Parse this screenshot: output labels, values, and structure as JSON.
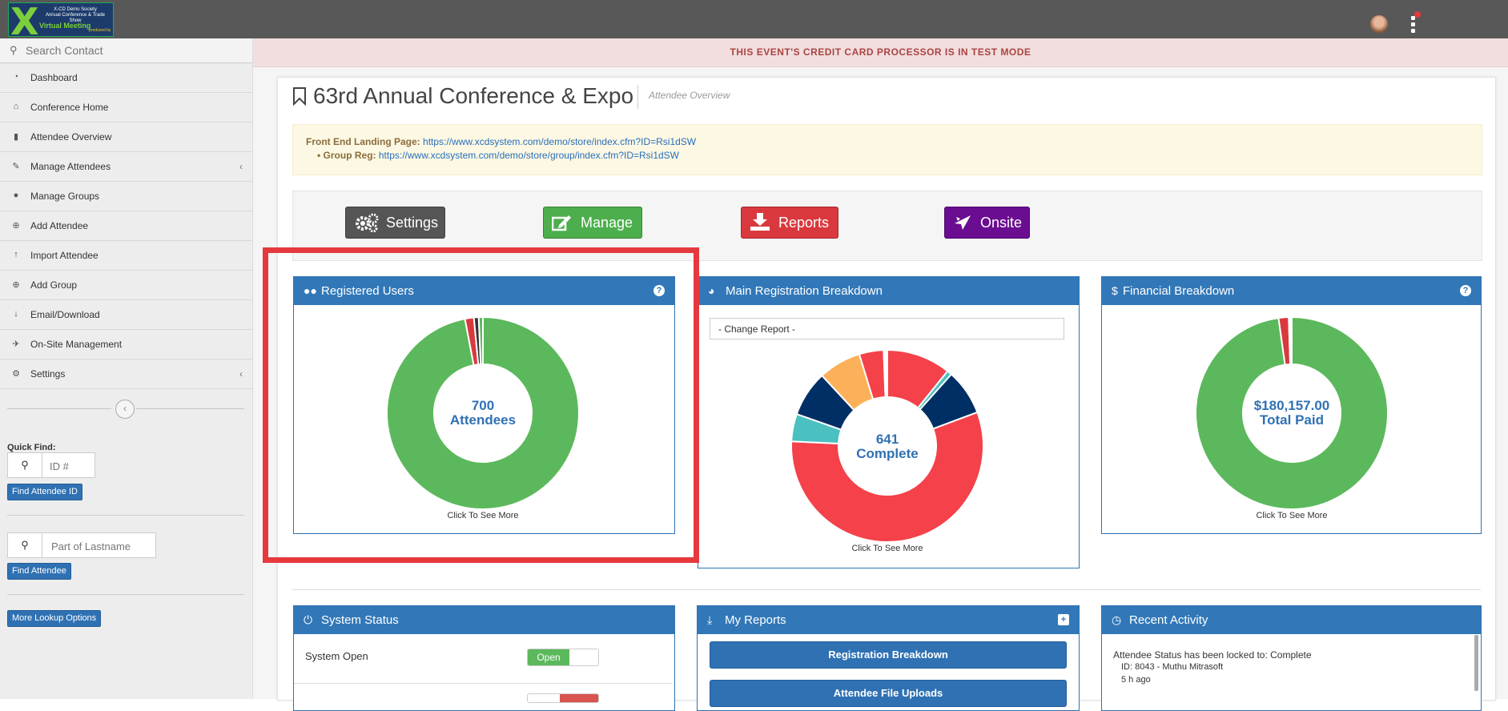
{
  "logo": {
    "line1": "X-CD Demo Society",
    "line2": "Annual Conference & Trade Show",
    "line3": "Virtual Meeting",
    "line4": "produced by"
  },
  "sidebar": {
    "search_placeholder": "Search Contact",
    "items": [
      {
        "label": "Dashboard",
        "icon": "dashboard-icon"
      },
      {
        "label": "Conference Home",
        "icon": "home-icon"
      },
      {
        "label": "Attendee Overview",
        "icon": "bar-chart-icon"
      },
      {
        "label": "Manage Attendees",
        "icon": "edit-icon",
        "chevron": true
      },
      {
        "label": "Manage Groups",
        "icon": "users-icon"
      },
      {
        "label": "Add Attendee",
        "icon": "plus-circle-icon"
      },
      {
        "label": "Import Attendee",
        "icon": "upload-icon"
      },
      {
        "label": "Add Group",
        "icon": "plus-circle-icon"
      },
      {
        "label": "Email/Download",
        "icon": "download-icon"
      },
      {
        "label": "On-Site Management",
        "icon": "plane-icon"
      },
      {
        "label": "Settings",
        "icon": "gears-icon",
        "chevron": true
      }
    ],
    "quick_find_label": "Quick Find:",
    "id_placeholder": "ID #",
    "find_id_button": "Find Attendee ID",
    "lastname_placeholder": "Part of Lastname",
    "find_attendee_button": "Find Attendee",
    "more_lookup_button": "More Lookup Options"
  },
  "banner": "THIS EVENT'S CREDIT CARD PROCESSOR IS IN TEST MODE",
  "page": {
    "title": "63rd Annual Conference & Expo",
    "subtitle": "Attendee Overview"
  },
  "info": {
    "landing_label": "Front End Landing Page:",
    "landing_url": "https://www.xcdsystem.com/demo/store/index.cfm?ID=Rsi1dSW",
    "group_label": "• Group Reg:",
    "group_url": "https://www.xcdsystem.com/demo/store/group/index.cfm?ID=Rsi1dSW"
  },
  "actions": [
    {
      "label": "Settings",
      "color": "#555555"
    },
    {
      "label": "Manage",
      "color": "#4cae4c"
    },
    {
      "label": "Reports",
      "color": "#d9393e"
    },
    {
      "label": "Onsite",
      "color": "#6a0d91"
    }
  ],
  "widgets": {
    "registered": {
      "title": "Registered Users",
      "center_value": "700",
      "center_label": "Attendees",
      "footer": "Click To See More",
      "slices": [
        {
          "value": 0.97,
          "color": "#5cb85c"
        },
        {
          "value": 0.015,
          "color": "#d9393e"
        },
        {
          "value": 0.008,
          "color": "#333333"
        },
        {
          "value": 0.007,
          "color": "#5cb85c"
        }
      ]
    },
    "breakdown": {
      "title": "Main Registration Breakdown",
      "select": "- Change Report -",
      "center_value": "641",
      "center_label": "Complete",
      "footer": "Click To See More",
      "slices": [
        {
          "value": 0.105,
          "color": "#f4414a"
        },
        {
          "value": 0.008,
          "color": "#4bc0c0"
        },
        {
          "value": 0.075,
          "color": "#002f66"
        },
        {
          "value": 0.55,
          "color": "#f4414a"
        },
        {
          "value": 0.045,
          "color": "#4bc0c0"
        },
        {
          "value": 0.075,
          "color": "#002f66"
        },
        {
          "value": 0.07,
          "color": "#fdb05a"
        },
        {
          "value": 0.04,
          "color": "#f4414a"
        },
        {
          "value": 0.006,
          "color": "#ffffff"
        }
      ]
    },
    "financial": {
      "title": "Financial Breakdown",
      "center_value": "$180,157.00",
      "center_label": "Total Paid",
      "footer": "Click To See More",
      "slices": [
        {
          "value": 0.978,
          "color": "#5cb85c"
        },
        {
          "value": 0.017,
          "color": "#d9393e"
        },
        {
          "value": 0.005,
          "color": "#ffffff"
        }
      ]
    },
    "system_status": {
      "title": "System Status",
      "row1_label": "System Open",
      "row1_toggle": "Open"
    },
    "my_reports": {
      "title": "My Reports",
      "buttons": [
        "Registration Breakdown",
        "Attendee File Uploads"
      ]
    },
    "recent": {
      "title": "Recent Activity",
      "line1": "Attendee Status has been locked to: Complete",
      "line2": "ID: 8043 - Muthu Mitrasoft",
      "line3": "5 h ago"
    }
  }
}
